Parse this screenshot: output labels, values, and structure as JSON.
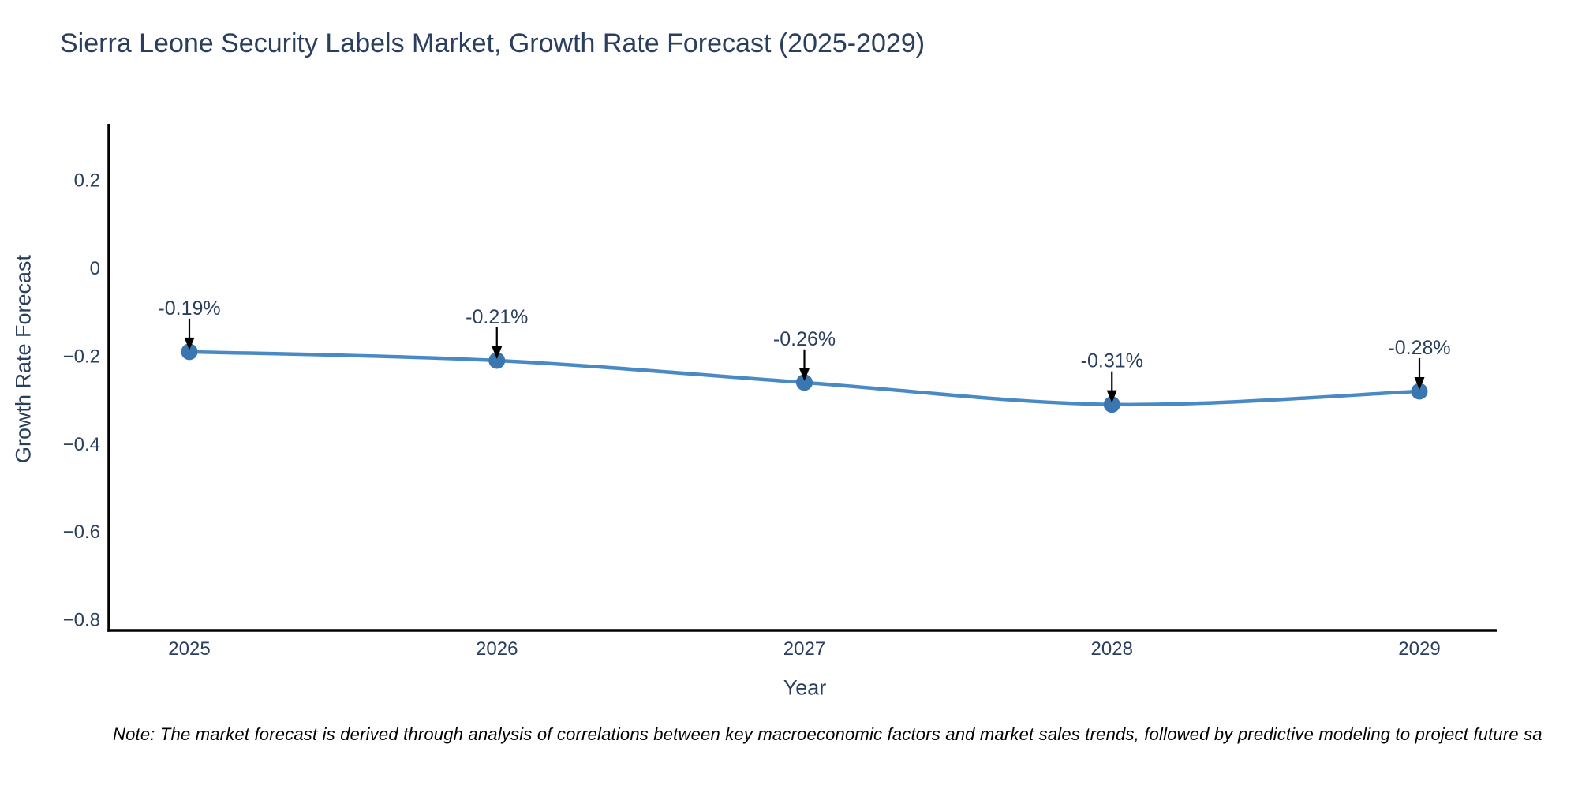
{
  "note": "Note: The market forecast is derived through analysis of correlations between key macroeconomic factors and market sales trends, followed by predictive modeling to project future sa",
  "chart_data": {
    "type": "line",
    "title": "Sierra Leone Security Labels Market, Growth Rate Forecast (2025-2029)",
    "xlabel": "Year",
    "ylabel": "Growth Rate Forecast",
    "x": [
      "2025",
      "2026",
      "2027",
      "2028",
      "2029"
    ],
    "series": [
      {
        "name": "Growth Rate Forecast",
        "values": [
          -0.19,
          -0.21,
          -0.26,
          -0.31,
          -0.28
        ],
        "point_labels": [
          "-0.19%",
          "-0.21%",
          "-0.26%",
          "-0.31%",
          "-0.28%"
        ]
      }
    ],
    "ylim": [
      -0.82,
      0.33
    ],
    "yticks": [
      0.2,
      0,
      -0.2,
      -0.4,
      -0.6,
      -0.8
    ],
    "ytick_labels": [
      "0.2",
      "0",
      "−0.2",
      "−0.4",
      "−0.6",
      "−0.8"
    ],
    "grid": false,
    "legend": "none",
    "line_shape": "spline",
    "annotation_style": "black-down-arrow",
    "colors": {
      "line": "#4a8ac4",
      "marker": "#3a76b0",
      "text": "#2a3f5f",
      "axis": "#000000",
      "arrow": "#000000",
      "background": "#ffffff"
    }
  }
}
